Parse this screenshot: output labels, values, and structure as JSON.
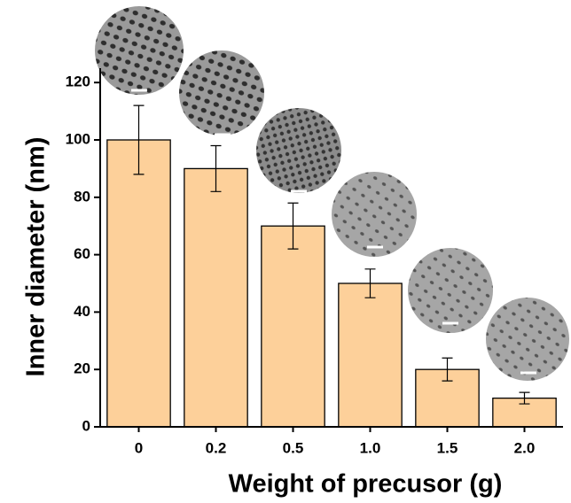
{
  "chart_data": {
    "type": "bar",
    "x_label": "Weight of precusor (g)",
    "y_label": "Inner diameter (nm)",
    "categories": [
      "0",
      "0.2",
      "0.5",
      "1.0",
      "1.5",
      "2.0"
    ],
    "values": [
      100,
      90,
      70,
      50,
      20,
      10
    ],
    "errors": [
      12,
      8,
      8,
      5,
      4,
      2
    ],
    "color": "#fdd09a",
    "ylim": [
      0,
      125
    ],
    "yticks": [
      0,
      20,
      40,
      60,
      80,
      100,
      120
    ]
  }
}
